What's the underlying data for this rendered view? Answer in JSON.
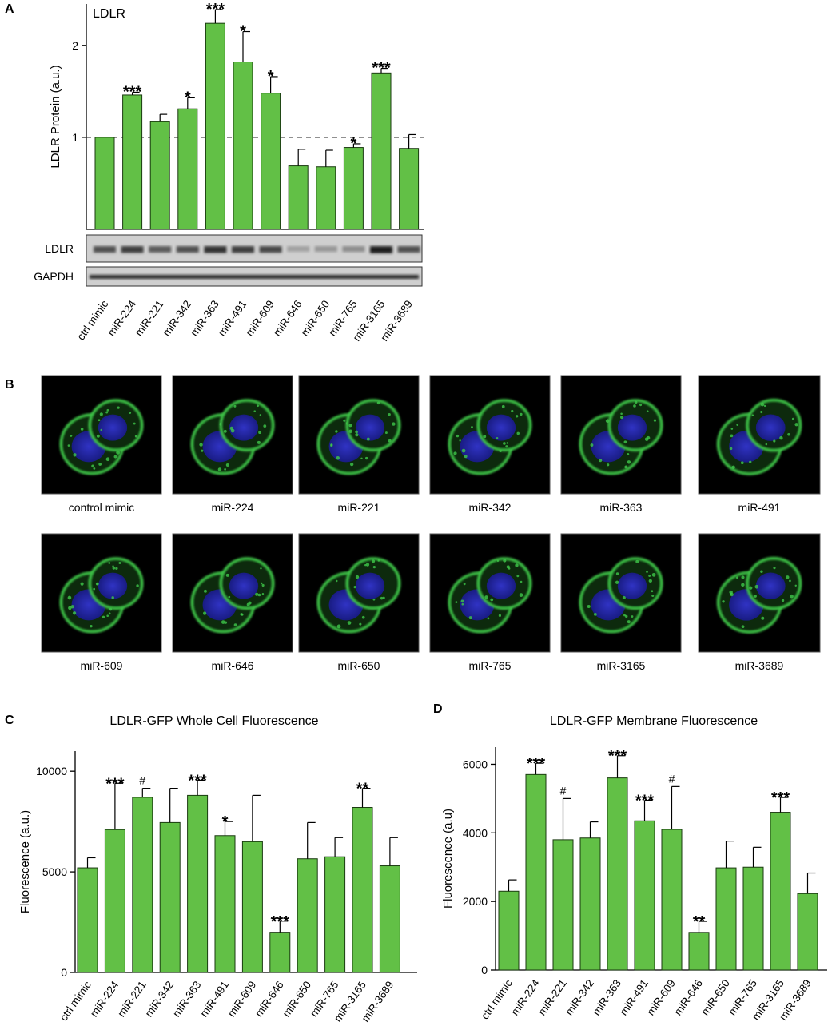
{
  "panel_labels": {
    "a": "A",
    "b": "B",
    "c": "C",
    "d": "D"
  },
  "colors": {
    "bar": "#62c046",
    "bar_edge": "#1a3a10",
    "cell_green": "#3fc84a",
    "nucleus_blue": "#2828c8",
    "blot_bg": "#cfcfcf"
  },
  "blot": {
    "ldlr_label": "LDLR",
    "gapdh_label": "GAPDH",
    "ldlr_intensity": [
      0.7,
      0.8,
      0.65,
      0.7,
      0.85,
      0.8,
      0.75,
      0.3,
      0.35,
      0.4,
      0.95,
      0.7
    ]
  },
  "micrographs": {
    "captions": [
      "control mimic",
      "miR-224",
      "miR-221",
      "miR-342",
      "miR-363",
      "miR-491",
      "miR-609",
      "miR-646",
      "miR-650",
      "miR-765",
      "miR-3165",
      "miR-3689"
    ]
  },
  "chart_data": [
    {
      "panel": "A",
      "type": "bar",
      "title": "LDLR",
      "xlabel": "",
      "ylabel": "LDLR Protein (a.u.)",
      "ylim": [
        0,
        2.45
      ],
      "yticks": [
        1,
        2
      ],
      "reference_line": 1,
      "categories": [
        "ctrl mimic",
        "miR-224",
        "miR-221",
        "miR-342",
        "miR-363",
        "miR-491",
        "miR-609",
        "miR-646",
        "miR-650",
        "miR-765",
        "miR-3165",
        "miR-3689"
      ],
      "values": [
        1.0,
        1.46,
        1.17,
        1.31,
        2.24,
        1.82,
        1.48,
        0.69,
        0.68,
        0.89,
        1.7,
        0.88
      ],
      "errors": [
        0.0,
        0.03,
        0.08,
        0.12,
        0.15,
        0.33,
        0.18,
        0.18,
        0.18,
        0.04,
        0.05,
        0.15
      ],
      "annotations": [
        "",
        "***",
        "",
        "*",
        "***",
        "*",
        "*",
        "",
        "",
        "*",
        "***",
        ""
      ]
    },
    {
      "panel": "C",
      "type": "bar",
      "title": "LDLR-GFP Whole Cell Fluorescence",
      "xlabel": "",
      "ylabel": "Fluorescence (a.u.)",
      "ylim": [
        0,
        11000
      ],
      "yticks": [
        0,
        5000,
        10000
      ],
      "categories": [
        "ctrl mimic",
        "miR-224",
        "miR-221",
        "miR-342",
        "miR-363",
        "miR-491",
        "miR-609",
        "miR-646",
        "miR-650",
        "miR-765",
        "miR-3165",
        "miR-3689"
      ],
      "values": [
        5200,
        7100,
        8700,
        7450,
        8800,
        6800,
        6500,
        2000,
        5650,
        5750,
        8200,
        5300
      ],
      "errors": [
        500,
        2300,
        450,
        1700,
        750,
        700,
        2300,
        550,
        1800,
        950,
        950,
        1400
      ],
      "annotations": [
        "",
        "***",
        "#",
        "",
        "***",
        "*",
        "",
        "***",
        "",
        "",
        "**",
        ""
      ]
    },
    {
      "panel": "D",
      "type": "bar",
      "title": "LDLR-GFP Membrane Fluorescence",
      "xlabel": "",
      "ylabel": "Fluorescence (a.u)",
      "ylim": [
        0,
        6500
      ],
      "yticks": [
        0,
        2000,
        4000,
        6000
      ],
      "categories": [
        "ctrl mimic",
        "miR-224",
        "miR-221",
        "miR-342",
        "miR-363",
        "miR-491",
        "miR-609",
        "miR-646",
        "miR-650",
        "miR-765",
        "miR-3165",
        "miR-3689"
      ],
      "values": [
        2300,
        5700,
        3800,
        3850,
        5600,
        4350,
        4100,
        1100,
        2980,
        3000,
        4600,
        2230
      ],
      "errors": [
        330,
        330,
        1200,
        470,
        650,
        600,
        1250,
        320,
        780,
        580,
        430,
        600
      ],
      "annotations": [
        "",
        "***",
        "#",
        "",
        "***",
        "***",
        "#",
        "**",
        "",
        "",
        "***",
        ""
      ]
    }
  ]
}
